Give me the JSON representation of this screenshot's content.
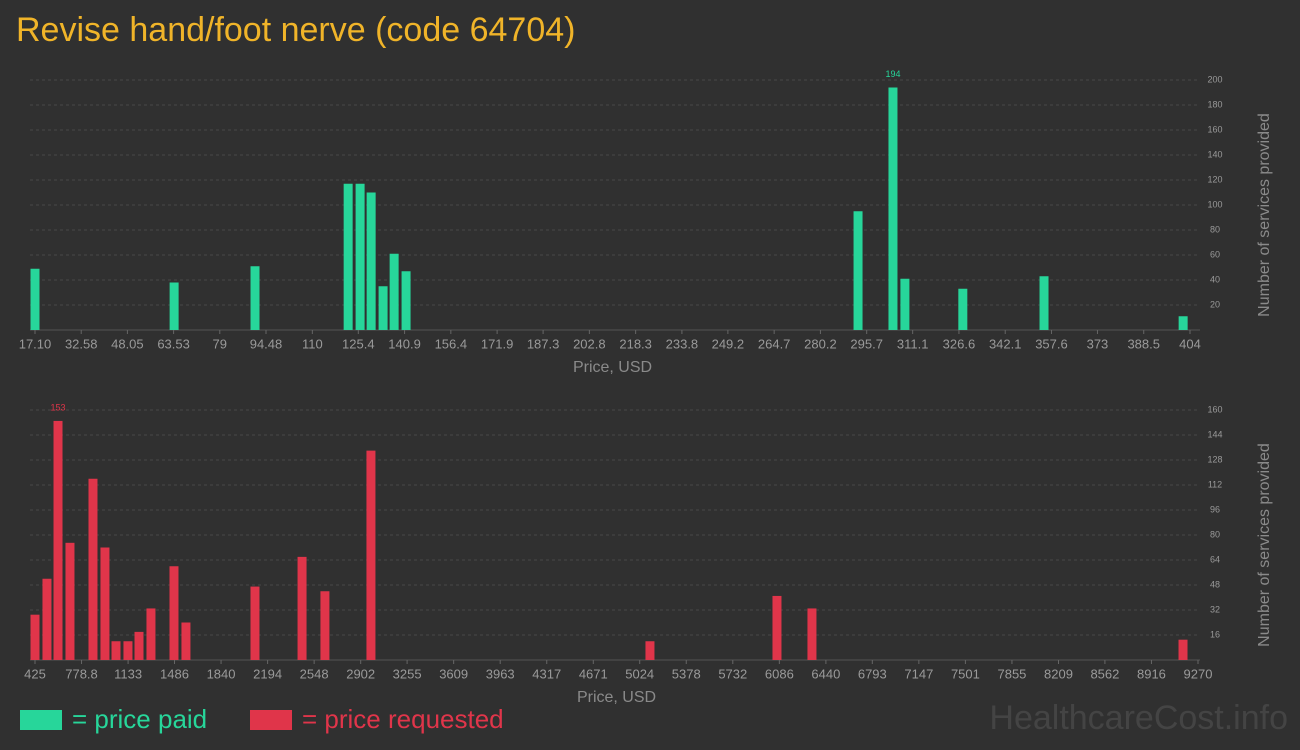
{
  "title": "Revise hand/foot nerve (code 64704)",
  "watermark": "HealthcareCost.info",
  "chart_data": [
    {
      "type": "bar",
      "xlabel": "Price, USD",
      "ylabel": "Number of services provided",
      "x": [
        17.1,
        63.7,
        90.8,
        122.0,
        126.0,
        129.7,
        133.7,
        137.4,
        141.4,
        292.8,
        304.5,
        308.5,
        327.9,
        355.1,
        401.7
      ],
      "series": [
        {
          "name": "= price paid",
          "color": "#27d69a",
          "values": [
            49,
            38,
            51,
            117,
            117,
            110,
            35,
            61,
            47,
            95,
            194,
            41,
            33,
            43,
            11
          ],
          "value_labels": [
            null,
            null,
            null,
            null,
            null,
            null,
            null,
            null,
            null,
            null,
            "194",
            null,
            null,
            null,
            null
          ]
        }
      ],
      "xlim": [
        17.1,
        404
      ],
      "xticks": [
        {
          "value": 17.1,
          "label": "17.10"
        },
        32.58,
        48.05,
        63.53,
        79,
        94.48,
        110,
        125.4,
        140.9,
        156.4,
        171.9,
        187.3,
        202.8,
        218.3,
        233.8,
        249.2,
        264.7,
        280.2,
        295.7,
        311.1,
        326.6,
        342.1,
        357.6,
        373,
        388.5,
        404
      ],
      "ylim": [
        0,
        200
      ],
      "yticks": [
        20,
        40,
        60,
        80,
        100,
        120,
        140,
        160,
        180,
        200
      ],
      "grid": true
    },
    {
      "type": "bar",
      "xlabel": "Price, USD",
      "ylabel": "Number of services provided",
      "x": [
        425,
        516,
        600,
        691,
        866,
        957,
        1041,
        1132,
        1216,
        1307,
        1482,
        1573,
        2098,
        2456,
        2630,
        2980,
        5102,
        6068,
        6334,
        9156
      ],
      "series": [
        {
          "name": "= price requested",
          "color": "#e0354a",
          "values": [
            29,
            52,
            153,
            75,
            116,
            72,
            12,
            12,
            18,
            33,
            60,
            24,
            47,
            66,
            44,
            134,
            12,
            41,
            33,
            13
          ],
          "value_labels": [
            null,
            null,
            "153",
            null,
            null,
            null,
            null,
            null,
            null,
            null,
            null,
            null,
            null,
            null,
            null,
            null,
            null,
            null,
            null,
            null
          ]
        }
      ],
      "xlim": [
        425,
        9270
      ],
      "xticks": [
        425,
        778.8,
        1133,
        1486,
        1840,
        2194,
        2548,
        2902,
        3255,
        3609,
        3963,
        4317,
        4671,
        5024,
        5378,
        5732,
        6086,
        6440,
        6793,
        7147,
        7501,
        7855,
        8209,
        8562,
        8916,
        9270
      ],
      "ylim": [
        0,
        160
      ],
      "yticks": [
        16,
        32,
        48,
        64,
        80,
        96,
        112,
        128,
        144,
        160
      ],
      "grid": true
    }
  ]
}
